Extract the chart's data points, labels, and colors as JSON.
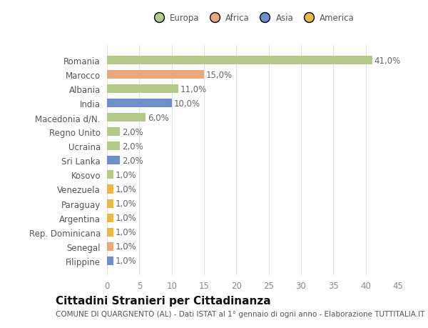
{
  "categories": [
    "Filippine",
    "Senegal",
    "Rep. Dominicana",
    "Argentina",
    "Paraguay",
    "Venezuela",
    "Kosovo",
    "Sri Lanka",
    "Ucraina",
    "Regno Unito",
    "Macedonia d/N.",
    "India",
    "Albania",
    "Marocco",
    "Romania"
  ],
  "values": [
    1.0,
    1.0,
    1.0,
    1.0,
    1.0,
    1.0,
    1.0,
    2.0,
    2.0,
    2.0,
    6.0,
    10.0,
    11.0,
    15.0,
    41.0
  ],
  "colors": [
    "#6e8fcc",
    "#e8a87c",
    "#e8b84b",
    "#e8b84b",
    "#e8b84b",
    "#e8b84b",
    "#b5c98a",
    "#6e8fcc",
    "#b5c98a",
    "#b5c98a",
    "#b5c98a",
    "#6e8fcc",
    "#b5c98a",
    "#e8a87c",
    "#b5c98a"
  ],
  "labels": [
    "1,0%",
    "1,0%",
    "1,0%",
    "1,0%",
    "1,0%",
    "1,0%",
    "1,0%",
    "2,0%",
    "2,0%",
    "2,0%",
    "6,0%",
    "10,0%",
    "11,0%",
    "15,0%",
    "41,0%"
  ],
  "legend": [
    {
      "label": "Europa",
      "color": "#b5c98a"
    },
    {
      "label": "Africa",
      "color": "#e8a87c"
    },
    {
      "label": "Asia",
      "color": "#6e8fcc"
    },
    {
      "label": "America",
      "color": "#e8b84b"
    }
  ],
  "xlim": [
    0,
    45
  ],
  "xticks": [
    0,
    5,
    10,
    15,
    20,
    25,
    30,
    35,
    40,
    45
  ],
  "title": "Cittadini Stranieri per Cittadinanza",
  "subtitle": "COMUNE DI QUARGNENTO (AL) - Dati ISTAT al 1° gennaio di ogni anno - Elaborazione TUTTITALIA.IT",
  "bg_color": "#ffffff",
  "grid_color": "#e0e0e0",
  "bar_height": 0.6,
  "label_fontsize": 8.5,
  "title_fontsize": 11,
  "subtitle_fontsize": 7.5
}
